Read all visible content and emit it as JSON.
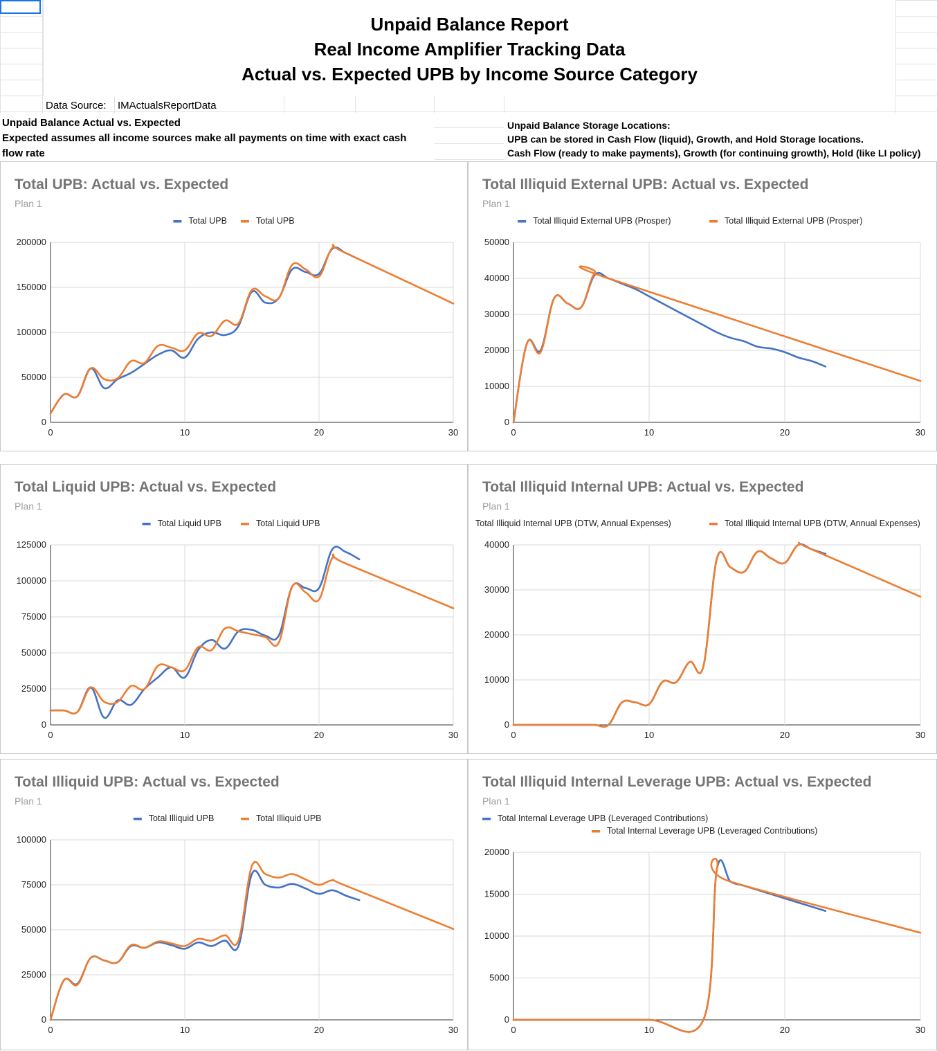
{
  "header": {
    "title_lines": [
      "Unpaid Balance Report",
      "Real Income Amplifier Tracking Data",
      "Actual vs. Expected UPB by Income Source Category"
    ],
    "data_source_label": "Data Source:",
    "data_source_value": "IMActualsReportData",
    "left_note": {
      "line1": "Unpaid Balance Actual vs. Expected",
      "line2": "Expected assumes all income sources make all payments on time with exact cash",
      "line3": "flow rate"
    },
    "right_note": {
      "line1": "Unpaid Balance Storage Locations:",
      "line2": "UPB can be stored in Cash Flow (liquid), Growth, and Hold Storage locations.",
      "line3": "Cash Flow (ready to make payments), Growth (for continuing growth), Hold (like LI policy)"
    }
  },
  "colors": {
    "actual": "#4472c4",
    "expected": "#ed7d31",
    "grid": "#d9d9d9"
  },
  "chart_data": [
    {
      "type": "line",
      "title": "Total UPB: Actual vs. Expected",
      "subtitle": "Plan 1",
      "xlim": [
        0,
        30
      ],
      "ylim": [
        0,
        200000
      ],
      "xticks": [
        0,
        10,
        20,
        30
      ],
      "yticks": [
        0,
        50000,
        100000,
        150000,
        200000
      ],
      "legend_layout": "row",
      "series": [
        {
          "name": "Total UPB",
          "role": "actual",
          "x": [
            0,
            1,
            2,
            3,
            4,
            5,
            6,
            7,
            8,
            9,
            10,
            11,
            12,
            13,
            14,
            15,
            16,
            17,
            18,
            19,
            20,
            21,
            22,
            23
          ],
          "y": [
            10000,
            31000,
            29000,
            60000,
            38000,
            48000,
            55000,
            65000,
            75000,
            80000,
            72000,
            93000,
            100000,
            97000,
            107000,
            145000,
            133000,
            138000,
            170000,
            167000,
            165000,
            193000,
            188000,
            181000
          ]
        },
        {
          "name": "Total UPB",
          "role": "expected",
          "x": [
            0,
            1,
            2,
            3,
            4,
            5,
            6,
            7,
            8,
            9,
            10,
            11,
            12,
            13,
            14,
            15,
            16,
            17,
            18,
            19,
            20,
            21,
            22,
            30
          ],
          "y": [
            10000,
            31000,
            29000,
            60000,
            48000,
            49000,
            68000,
            66000,
            85000,
            83000,
            80000,
            99000,
            96000,
            113000,
            110000,
            147000,
            140000,
            138000,
            175000,
            170000,
            162000,
            194000,
            188000,
            132000
          ]
        }
      ]
    },
    {
      "type": "line",
      "title": "Total Illiquid External UPB: Actual vs. Expected",
      "subtitle": "Plan 1",
      "xlim": [
        0,
        30
      ],
      "ylim": [
        0,
        50000
      ],
      "xticks": [
        0,
        10,
        20,
        30
      ],
      "yticks": [
        0,
        10000,
        20000,
        30000,
        40000,
        50000
      ],
      "legend_layout": "row",
      "series": [
        {
          "name": "Total Illiquid External UPB (Prosper)",
          "role": "actual",
          "x": [
            0,
            1,
            2,
            3,
            4,
            5,
            6,
            7,
            8,
            9,
            10,
            11,
            12,
            13,
            14,
            15,
            16,
            17,
            18,
            19,
            20,
            21,
            22,
            23
          ],
          "y": [
            0,
            22000,
            20000,
            34500,
            33000,
            32000,
            41000,
            40000,
            38500,
            37000,
            35000,
            33000,
            31000,
            29000,
            27000,
            25000,
            23500,
            22500,
            21000,
            20500,
            19500,
            18000,
            17000,
            15500
          ]
        },
        {
          "name": "Total Illiquid External UPB (Prosper)",
          "role": "expected",
          "x": [
            0,
            1,
            2,
            3,
            4,
            5,
            6,
            7,
            30
          ],
          "y": [
            0,
            22000,
            19500,
            34500,
            33000,
            32000,
            41500,
            40000,
            11500
          ]
        }
      ]
    },
    {
      "type": "line",
      "title": "Total Liquid UPB: Actual vs. Expected",
      "subtitle": "Plan 1",
      "xlim": [
        0,
        30
      ],
      "ylim": [
        0,
        125000
      ],
      "xticks": [
        0,
        10,
        20,
        30
      ],
      "yticks": [
        0,
        25000,
        50000,
        75000,
        100000,
        125000
      ],
      "legend_layout": "row",
      "series": [
        {
          "name": "Total Liquid UPB",
          "role": "actual",
          "x": [
            0,
            1,
            2,
            3,
            4,
            5,
            6,
            7,
            8,
            9,
            10,
            11,
            12,
            13,
            14,
            15,
            16,
            17,
            18,
            19,
            20,
            21,
            22,
            23
          ],
          "y": [
            10000,
            10000,
            9000,
            26000,
            5000,
            17000,
            14000,
            25000,
            33000,
            40000,
            33000,
            52000,
            59000,
            53000,
            65000,
            66000,
            62000,
            62000,
            96000,
            95000,
            95000,
            122000,
            120000,
            115000
          ]
        },
        {
          "name": "Total Liquid UPB",
          "role": "expected",
          "x": [
            0,
            1,
            2,
            3,
            4,
            5,
            6,
            7,
            8,
            9,
            10,
            11,
            12,
            13,
            14,
            15,
            16,
            17,
            18,
            19,
            20,
            21,
            22,
            30
          ],
          "y": [
            10000,
            10000,
            9000,
            26000,
            16000,
            16000,
            27000,
            25000,
            41000,
            40000,
            38000,
            54000,
            52000,
            67000,
            65000,
            63000,
            61000,
            57000,
            96000,
            92000,
            87000,
            116000,
            112000,
            81000
          ]
        }
      ]
    },
    {
      "type": "line",
      "title": "Total Illiquid Internal UPB: Actual vs. Expected",
      "subtitle": "Plan 1",
      "xlim": [
        0,
        30
      ],
      "ylim": [
        0,
        40000
      ],
      "xticks": [
        0,
        10,
        20,
        30
      ],
      "yticks": [
        0,
        10000,
        20000,
        30000,
        40000
      ],
      "legend_layout": "row",
      "series": [
        {
          "name": "Total Illiquid Internal UPB (DTW, Annual Expenses)",
          "role": "actual",
          "x": [
            0,
            1,
            2,
            3,
            4,
            5,
            6,
            7,
            8,
            9,
            10,
            11,
            12,
            13,
            14,
            15,
            16,
            17,
            18,
            19,
            20,
            21,
            22,
            23
          ],
          "y": [
            0,
            0,
            0,
            0,
            0,
            0,
            0,
            0,
            5000,
            5000,
            4600,
            9600,
            9500,
            14000,
            13000,
            37000,
            35000,
            34000,
            38500,
            37000,
            36000,
            40000,
            39000,
            38000
          ]
        },
        {
          "name": "Total Illiquid Internal UPB (DTW, Annual Expenses)",
          "role": "expected",
          "x": [
            0,
            1,
            2,
            3,
            4,
            5,
            6,
            7,
            8,
            9,
            10,
            11,
            12,
            13,
            14,
            15,
            16,
            17,
            18,
            19,
            20,
            21,
            22,
            30
          ],
          "y": [
            0,
            0,
            0,
            0,
            0,
            0,
            0,
            0,
            5000,
            5000,
            4600,
            9600,
            9500,
            14000,
            13000,
            37000,
            35000,
            34000,
            38500,
            37000,
            36000,
            40000,
            39000,
            28500
          ]
        }
      ]
    },
    {
      "type": "line",
      "title": "Total Illiquid UPB: Actual vs. Expected",
      "subtitle": "Plan 1",
      "xlim": [
        0,
        30
      ],
      "ylim": [
        0,
        100000
      ],
      "xticks": [
        0,
        10,
        20,
        30
      ],
      "yticks": [
        0,
        25000,
        50000,
        75000,
        100000
      ],
      "legend_layout": "row",
      "series": [
        {
          "name": "Total Illiquid UPB",
          "role": "actual",
          "x": [
            0,
            1,
            2,
            3,
            4,
            5,
            6,
            7,
            8,
            9,
            10,
            11,
            12,
            13,
            14,
            15,
            16,
            17,
            18,
            19,
            20,
            21,
            22,
            23
          ],
          "y": [
            0,
            22000,
            20000,
            34500,
            33000,
            32000,
            41000,
            40000,
            43000,
            41500,
            39500,
            43000,
            41000,
            44000,
            41000,
            81000,
            75000,
            73500,
            75500,
            73000,
            70000,
            72000,
            69000,
            66500
          ]
        },
        {
          "name": "Total Illiquid UPB",
          "role": "expected",
          "x": [
            0,
            1,
            2,
            3,
            4,
            5,
            6,
            7,
            8,
            9,
            10,
            11,
            12,
            13,
            14,
            15,
            16,
            17,
            18,
            19,
            20,
            21,
            22,
            30
          ],
          "y": [
            0,
            22000,
            19500,
            34500,
            33000,
            32000,
            41500,
            40000,
            43500,
            42500,
            41000,
            45000,
            44000,
            47000,
            44000,
            85500,
            81000,
            79000,
            81000,
            78000,
            75000,
            77500,
            74500,
            50500
          ]
        }
      ]
    },
    {
      "type": "line",
      "title": "Total Illiquid Internal Leverage UPB: Actual vs. Expected",
      "subtitle": "Plan 1",
      "xlim": [
        0,
        30
      ],
      "ylim": [
        0,
        20000
      ],
      "xticks": [
        0,
        10,
        20,
        30
      ],
      "yticks": [
        0,
        5000,
        10000,
        15000,
        20000
      ],
      "legend_layout": "stacked",
      "series": [
        {
          "name": "Total Internal Leverage UPB (Leveraged Contributions)",
          "role": "actual",
          "x": [
            0,
            5,
            10,
            14,
            15,
            16,
            17,
            18,
            19,
            20,
            21,
            22,
            23
          ],
          "y": [
            0,
            0,
            0,
            0,
            18000,
            16500,
            16000,
            15500,
            15000,
            14500,
            14000,
            13500,
            13000
          ]
        },
        {
          "name": "Total Internal Leverage UPB (Leveraged Contributions)",
          "role": "expected",
          "x": [
            0,
            5,
            10,
            14,
            15,
            16,
            30
          ],
          "y": [
            0,
            0,
            0,
            0,
            18000,
            16500,
            10400
          ]
        }
      ]
    }
  ]
}
